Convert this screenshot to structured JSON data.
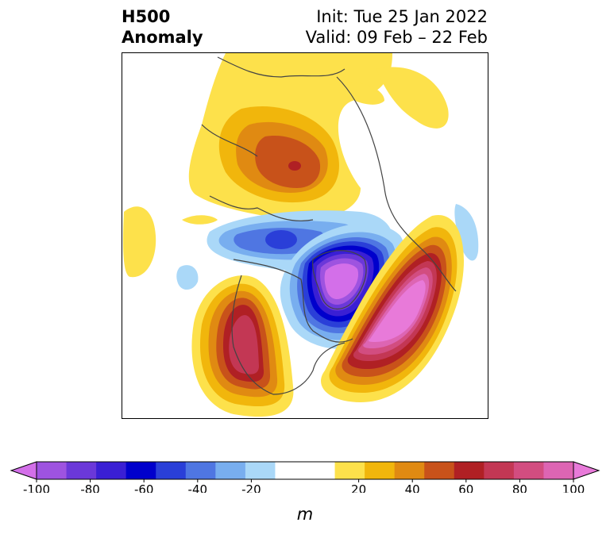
{
  "title": {
    "left_line1": "H500",
    "left_line2": "Anomaly",
    "right_line1": "Init: Tue 25 Jan 2022",
    "right_line2": "Valid: 09 Feb – 22 Feb"
  },
  "colorbar": {
    "unit_label": "m",
    "min": -100,
    "max": 100,
    "step": 10,
    "tick_labels": [
      "-100",
      "-80",
      "-60",
      "-40",
      "-20",
      "20",
      "40",
      "60",
      "80",
      "100"
    ],
    "tick_values": [
      -100,
      -80,
      -60,
      -40,
      -20,
      20,
      40,
      60,
      80,
      100
    ],
    "colors": [
      "#d36fe9",
      "#9e53e0",
      "#6b38d9",
      "#3a1fd4",
      "#0000cc",
      "#2a3fd8",
      "#4f76e2",
      "#78aeef",
      "#aad8f8",
      "#ffffff",
      "#ffffff",
      "#fde14b",
      "#f1b60c",
      "#e08a12",
      "#c8521a",
      "#b02024",
      "#c33754",
      "#d24d80",
      "#dd65b3",
      "#e87ad9"
    ]
  },
  "map": {
    "projection": "north polar stereographic",
    "anomaly_centers": [
      {
        "region": "central Eurasia",
        "sign": "positive",
        "peak_m": 60
      },
      {
        "region": "Labrador Sea / Greenland",
        "sign": "negative",
        "peak_m": -100
      },
      {
        "region": "central North Atlantic",
        "sign": "positive",
        "peak_m": 100
      },
      {
        "region": "western North America",
        "sign": "positive",
        "peak_m": 70
      },
      {
        "region": "central Arctic Ocean",
        "sign": "negative",
        "peak_m": -50
      }
    ]
  }
}
